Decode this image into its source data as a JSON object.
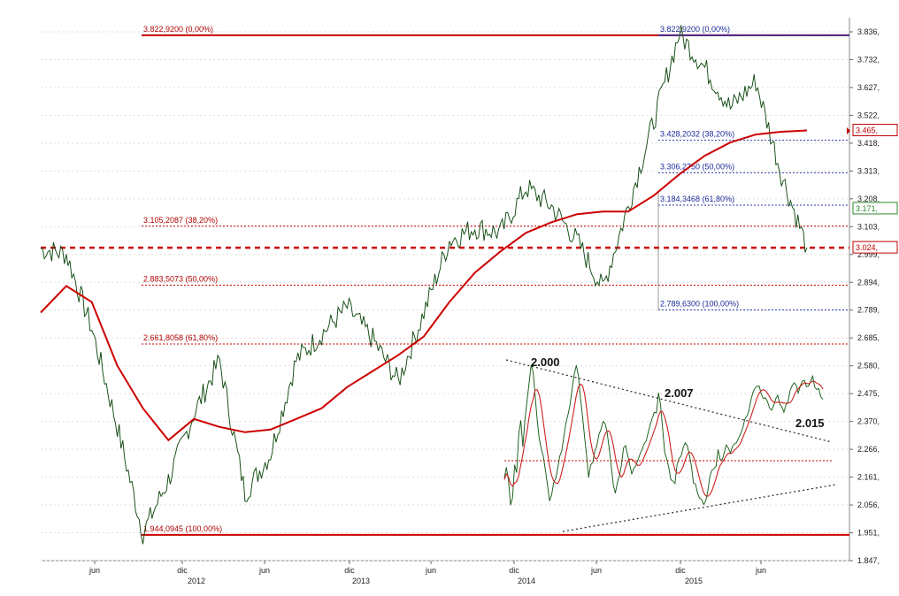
{
  "chart_data": [
    {
      "type": "line",
      "title": "",
      "x": [
        "2011-04",
        "2011-06",
        "2011-08",
        "2011-10",
        "2011-11",
        "2011-12",
        "2012-02",
        "2012-04",
        "2012-06",
        "2012-08",
        "2012-10",
        "2012-12",
        "2013-02",
        "2013-04",
        "2013-06",
        "2013-08",
        "2013-10",
        "2013-12",
        "2014-02",
        "2014-04",
        "2014-06",
        "2014-08",
        "2014-10",
        "2014-12",
        "2015-02",
        "2015-03",
        "2015-04",
        "2015-06",
        "2015-07",
        "2015-08",
        "2015-09"
      ],
      "series": [
        {
          "values": [
            3020,
            3000,
            2720,
            2350,
            1950,
            2150,
            2400,
            2600,
            2100,
            2250,
            2600,
            2700,
            2800,
            2680,
            2520,
            2780,
            3050,
            3100,
            3080,
            3250,
            3180,
            3050,
            2870,
            3180,
            3500,
            3830,
            3700,
            3550,
            3650,
            3300,
            3024
          ]
        },
        {
          "values": [
            2780,
            2880,
            2820,
            2580,
            2420,
            2300,
            2380,
            2350,
            2330,
            2340,
            2380,
            2420,
            2500,
            2560,
            2620,
            2690,
            2820,
            2930,
            3010,
            3080,
            3120,
            3150,
            3160,
            3160,
            3220,
            3300,
            3370,
            3420,
            3450,
            3460,
            3465
          ]
        }
      ],
      "ylim": [
        1847,
        3836
      ],
      "yticks": [
        "3.836,",
        "3.732,",
        "3.627,",
        "3.522,",
        "3.418,",
        "3.313,",
        "3.208,",
        "3.103,",
        "2.999,",
        "2.894,",
        "2.789,",
        "2.685,",
        "2.580,",
        "2.475,",
        "2.370,",
        "2.266,",
        "2.161,",
        "2.056,",
        "1.951,",
        "1.847,"
      ],
      "xticks": [
        "jun",
        "dic",
        "jun",
        "dic",
        "jun",
        "dic",
        "jun",
        "dic",
        "jun"
      ],
      "year_labels": [
        "2012",
        "2013",
        "2014",
        "2015"
      ],
      "price_tags": [
        {
          "text": "3.465,",
          "value": 3465,
          "color": "#c00000"
        },
        {
          "text": "3.171,",
          "value": 3171,
          "color": "#2e8b2e"
        },
        {
          "text": "3.024,",
          "value": 3024,
          "color": "#c00000"
        }
      ],
      "fib_red": [
        {
          "text": "3.822,9200  (0,00%)",
          "value": 3823
        },
        {
          "text": "3.105,2087  (38,20%)",
          "value": 3105
        },
        {
          "text": "2.883,5073  (50,00%)",
          "value": 2883
        },
        {
          "text": "2.661,8058  (61,80%)",
          "value": 2662
        },
        {
          "text": "1.944,0945  (100,00%)",
          "value": 1944
        }
      ],
      "fib_blue": [
        {
          "text": "3.822,9200  (0,00%)",
          "value": 3823
        },
        {
          "text": "3.428,2032  (38,20%)",
          "value": 3428
        },
        {
          "text": "3.306,2750  (50,00%)",
          "value": 3306
        },
        {
          "text": "3.184,3468  (61,80%)",
          "value": 3184
        },
        {
          "text": "2.789,6300  (100,00%)",
          "value": 2790
        }
      ],
      "support_line": 3024
    },
    {
      "type": "line",
      "title": "",
      "series": [
        {
          "values": [
            0.22,
            0.3,
            0.2,
            0.05,
            0.12,
            0.3,
            0.28,
            0.55,
            0.62,
            0.45,
            0.6,
            0.72,
            0.88,
            0.97,
            0.93,
            0.8,
            0.62,
            0.5,
            0.42,
            0.35,
            0.3,
            0.2,
            0.1,
            0.12,
            0.22,
            0.25,
            0.28,
            0.36,
            0.42,
            0.5,
            0.58,
            0.66,
            0.72,
            0.82,
            0.92,
            0.98,
            0.92,
            0.78,
            0.66,
            0.5,
            0.36,
            0.26,
            0.3,
            0.36,
            0.42,
            0.45,
            0.5,
            0.55,
            0.6,
            0.62,
            0.55,
            0.45,
            0.3,
            0.18,
            0.15,
            0.2,
            0.26,
            0.34,
            0.42,
            0.45,
            0.38,
            0.3,
            0.25,
            0.28,
            0.32,
            0.36,
            0.4,
            0.42,
            0.44,
            0.48,
            0.52,
            0.58,
            0.62,
            0.66,
            0.68,
            0.8,
            0.72,
            0.55,
            0.42,
            0.35,
            0.28,
            0.24,
            0.2,
            0.22,
            0.3,
            0.34,
            0.38,
            0.42,
            0.45,
            0.44,
            0.4,
            0.3,
            0.22,
            0.18,
            0.15,
            0.12,
            0.08,
            0.06,
            0.1,
            0.15,
            0.22,
            0.28,
            0.3,
            0.32,
            0.4,
            0.38,
            0.34,
            0.4,
            0.44,
            0.42,
            0.38,
            0.42,
            0.45,
            0.48,
            0.52,
            0.55,
            0.58,
            0.62,
            0.66,
            0.7,
            0.74,
            0.8,
            0.84,
            0.86,
            0.84,
            0.8,
            0.78,
            0.76,
            0.74,
            0.72,
            0.7,
            0.72,
            0.76,
            0.78,
            0.74,
            0.7,
            0.68,
            0.72,
            0.76,
            0.8,
            0.84,
            0.88,
            0.86,
            0.82,
            0.85,
            0.88,
            0.9,
            0.86,
            0.84,
            0.88,
            0.9,
            0.86,
            0.84,
            0.82,
            0.78,
            0.74
          ]
        }
      ],
      "peak_labels": [
        "2.000",
        "2.007",
        "2.015"
      ]
    }
  ]
}
